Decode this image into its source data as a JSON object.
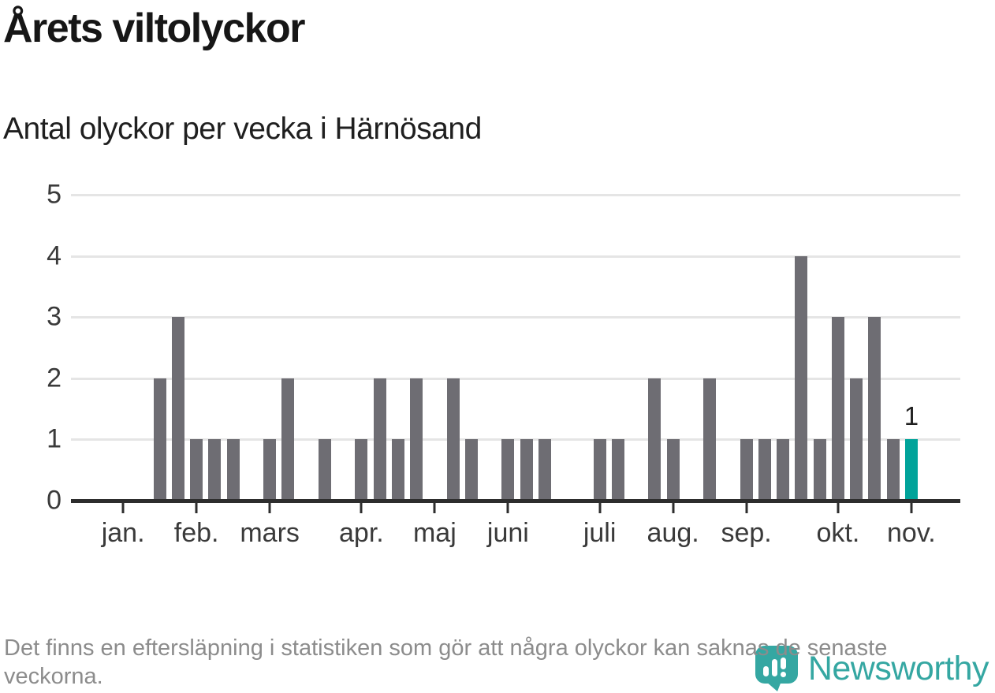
{
  "header": {
    "title": "Årets viltolyckor",
    "subtitle": "Antal olyckor per vecka i Härnösand"
  },
  "chart_data": {
    "type": "bar",
    "title": "Årets viltolyckor",
    "subtitle": "Antal olyckor per vecka i Härnösand",
    "xlabel": "",
    "ylabel": "",
    "ylim": [
      0,
      5
    ],
    "yticks": [
      0,
      1,
      2,
      3,
      4,
      5
    ],
    "grid": true,
    "legend": false,
    "num_week_slots": 48,
    "values": [
      0,
      0,
      0,
      0,
      2,
      3,
      1,
      1,
      1,
      0,
      1,
      2,
      0,
      1,
      0,
      1,
      2,
      1,
      2,
      0,
      2,
      1,
      0,
      1,
      1,
      1,
      0,
      0,
      1,
      1,
      0,
      2,
      1,
      0,
      2,
      0,
      1,
      1,
      1,
      4,
      1,
      3,
      2,
      3,
      1,
      1,
      0,
      0
    ],
    "month_ticks": [
      {
        "label": "jan.",
        "index": 2
      },
      {
        "label": "feb.",
        "index": 6
      },
      {
        "label": "mars",
        "index": 10
      },
      {
        "label": "apr.",
        "index": 15
      },
      {
        "label": "maj",
        "index": 19
      },
      {
        "label": "juni",
        "index": 23
      },
      {
        "label": "juli",
        "index": 28
      },
      {
        "label": "aug.",
        "index": 32
      },
      {
        "label": "sep.",
        "index": 36
      },
      {
        "label": "okt.",
        "index": 41
      },
      {
        "label": "nov.",
        "index": 45
      }
    ],
    "highlight": {
      "index": 45,
      "value": 1,
      "label": "1"
    },
    "colors": {
      "bar": "#6e6d73",
      "highlight": "#00a39a",
      "grid": "#e5e5e5",
      "axis": "#2d2d2d"
    }
  },
  "footer": {
    "note": "Det finns en eftersläpning i statistiken som gör att några olyckor kan saknas de senaste veckorna."
  },
  "branding": {
    "logo_text": "Newsworthy",
    "logo_color": "#35a7a2"
  }
}
